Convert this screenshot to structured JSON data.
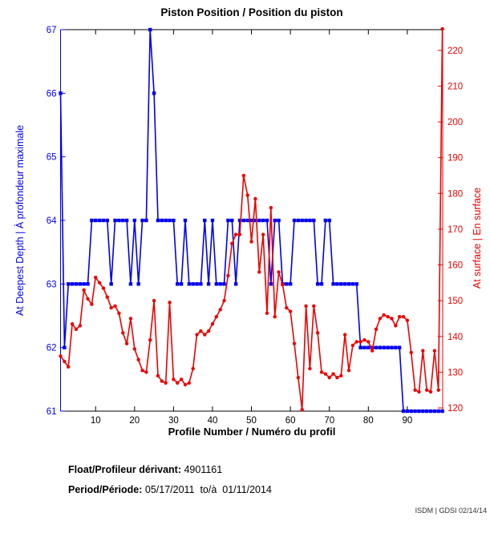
{
  "title": "Piston Position / Position du piston",
  "footer": {
    "float_label": "Float/Profileur dérivant:",
    "float_value": " 4901161",
    "period_label": "Period/Période:",
    "period_value": " 05/17/2011  to/à  01/11/2014"
  },
  "watermark": "ISDM | GDSI 02/14/14",
  "chart_data": {
    "type": "line",
    "title": "Piston Position / Position du piston",
    "xlabel": "Profile Number / Numéro du profil",
    "ylabel_left": "At Deepest Depth | À profondeur maximale",
    "ylabel_right": "At surface | En surface",
    "x_range": [
      1,
      99
    ],
    "x_ticks": [
      10,
      20,
      30,
      40,
      50,
      60,
      70,
      80,
      90
    ],
    "grid": false,
    "legend": "none",
    "y_left": {
      "range": [
        61,
        67
      ],
      "ticks": [
        61,
        62,
        63,
        64,
        65,
        66,
        67
      ],
      "color": "#0000ee"
    },
    "y_right": {
      "range": [
        119.1,
        225.8
      ],
      "ticks": [
        120,
        130,
        140,
        150,
        160,
        170,
        180,
        190,
        200,
        210,
        220
      ],
      "color": "#ee0000"
    },
    "series": [
      {
        "name": "At Deepest Depth | À profondeur maximale",
        "axis": "left",
        "color": "#0000ee",
        "marker": "square",
        "values": [
          66,
          62,
          63,
          63,
          63,
          63,
          63,
          63,
          64,
          64,
          64,
          64,
          64,
          63,
          64,
          64,
          64,
          64,
          63,
          64,
          63,
          64,
          64,
          67,
          66,
          64,
          64,
          64,
          64,
          64,
          63,
          63,
          64,
          63,
          63,
          63,
          63,
          64,
          63,
          64,
          63,
          63,
          63,
          64,
          64,
          63,
          64,
          64,
          64,
          64,
          64,
          64,
          64,
          64,
          63,
          64,
          64,
          63,
          63,
          63,
          64,
          64,
          64,
          64,
          64,
          64,
          63,
          63,
          64,
          64,
          63,
          63,
          63,
          63,
          63,
          63,
          63,
          62,
          62,
          62,
          62,
          62,
          62,
          62,
          62,
          62,
          62,
          62,
          61,
          61,
          61,
          61,
          61,
          61,
          61,
          61,
          61,
          61,
          61
        ]
      },
      {
        "name": "At surface | En surface",
        "axis": "right",
        "color": "#ee0000",
        "marker": "dot",
        "values": [
          134.5,
          133,
          131.5,
          143.5,
          142,
          143,
          153,
          150.5,
          149,
          156.5,
          155,
          153.5,
          151,
          148,
          148.5,
          146.5,
          141,
          138,
          145,
          136.5,
          133.5,
          130.5,
          130,
          139,
          150,
          129,
          127.5,
          127,
          149.5,
          128,
          127,
          128,
          126.5,
          127,
          131,
          140.5,
          141.5,
          140.5,
          141.5,
          143.5,
          145.5,
          147.5,
          150,
          157,
          166,
          168.5,
          168.5,
          185,
          179.5,
          166.5,
          178.5,
          158,
          168.5,
          146.5,
          176,
          145.5,
          158,
          154.5,
          148,
          147,
          138,
          128.5,
          119.5,
          148.5,
          131,
          148.5,
          141,
          130,
          129.5,
          128.5,
          129.5,
          128.5,
          129,
          140.5,
          130.5,
          137.5,
          138.5,
          138.5,
          139,
          138.5,
          136,
          142,
          145,
          146,
          145.5,
          145,
          143,
          145.5,
          145.5,
          144.5,
          135.5,
          125,
          124.5,
          136,
          125,
          124.5,
          136,
          125,
          226
        ]
      }
    ]
  }
}
